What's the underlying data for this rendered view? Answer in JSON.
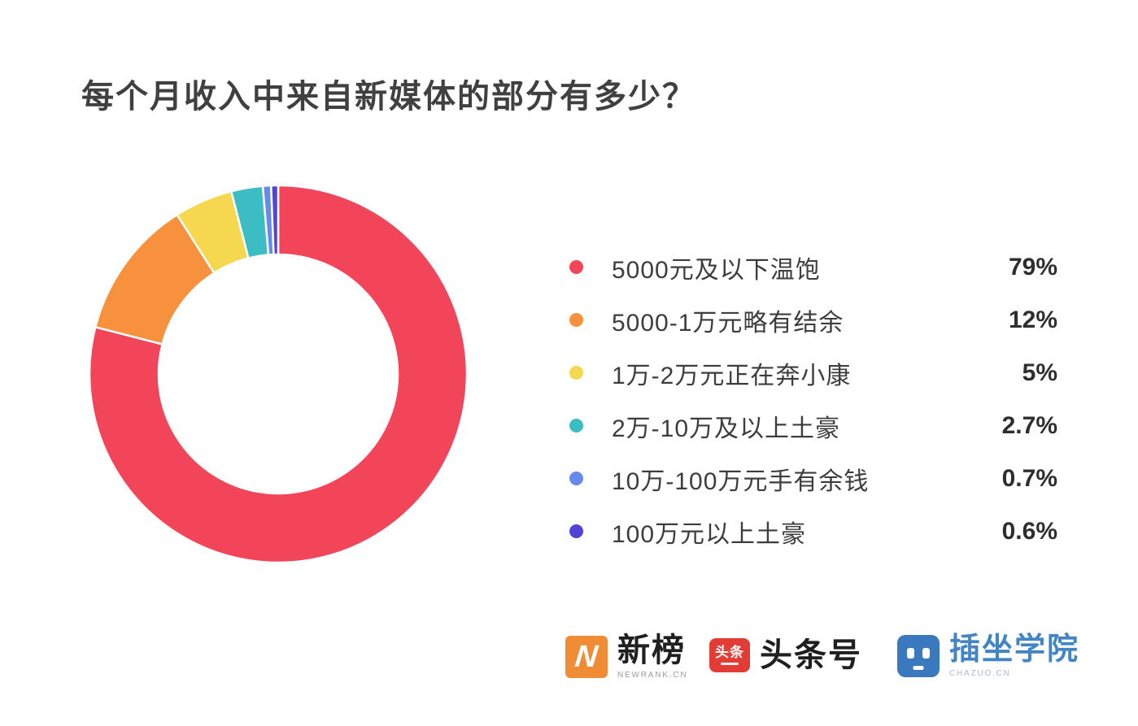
{
  "title": {
    "text": "每个月收入中来自新媒体的部分有多少？"
  },
  "chart_data": {
    "type": "pie",
    "subtype": "donut",
    "title": "每个月收入中来自新媒体的部分有多少？",
    "categories": [
      "5000元及以下温饱",
      "5000-1万元略有结余",
      "1万-2万元正在奔小康",
      "2万-10万及以上土豪",
      "10万-100万元手有余钱",
      "100万元以上土豪"
    ],
    "values": [
      79,
      12,
      5,
      2.7,
      0.7,
      0.6
    ],
    "unit": "%",
    "colors": [
      "#F3455A",
      "#F7913D",
      "#F6D850",
      "#3CBCC3",
      "#6789E9",
      "#4F44D4"
    ],
    "start_angle": "top",
    "direction": "clockwise",
    "inner_radius_ratio": 0.63,
    "slice_gap_color": "#ffffff",
    "legend_position": "right",
    "grid": false
  },
  "legend": {
    "items": [
      {
        "label": "5000元及以下温饱",
        "percent": "79%",
        "color": "#F3455A"
      },
      {
        "label": "5000-1万元略有结余",
        "percent": "12%",
        "color": "#F7913D"
      },
      {
        "label": "1万-2万元正在奔小康",
        "percent": "5%",
        "color": "#F6D850"
      },
      {
        "label": "2万-10万及以上土豪",
        "percent": "2.7%",
        "color": "#3CBCC3"
      },
      {
        "label": "10万-100万元手有余钱",
        "percent": "0.7%",
        "color": "#6789E9"
      },
      {
        "label": "100万元以上土豪",
        "percent": "0.6%",
        "color": "#4F44D4"
      }
    ]
  },
  "footer": {
    "logos": [
      {
        "name": "newrank",
        "icon_letter": "N",
        "icon_bg": "#EF8C35",
        "brand_text": "新榜",
        "sub_text": "NEWRANK.CN"
      },
      {
        "name": "toutiao",
        "icon_text": "头条",
        "icon_bg": "#E13C35",
        "brand_text": "头条号"
      },
      {
        "name": "chazuo",
        "icon_bg": "#3A79BD",
        "brand_text": "插坐学院",
        "sub_text": "CHAZUO.CN"
      }
    ]
  }
}
